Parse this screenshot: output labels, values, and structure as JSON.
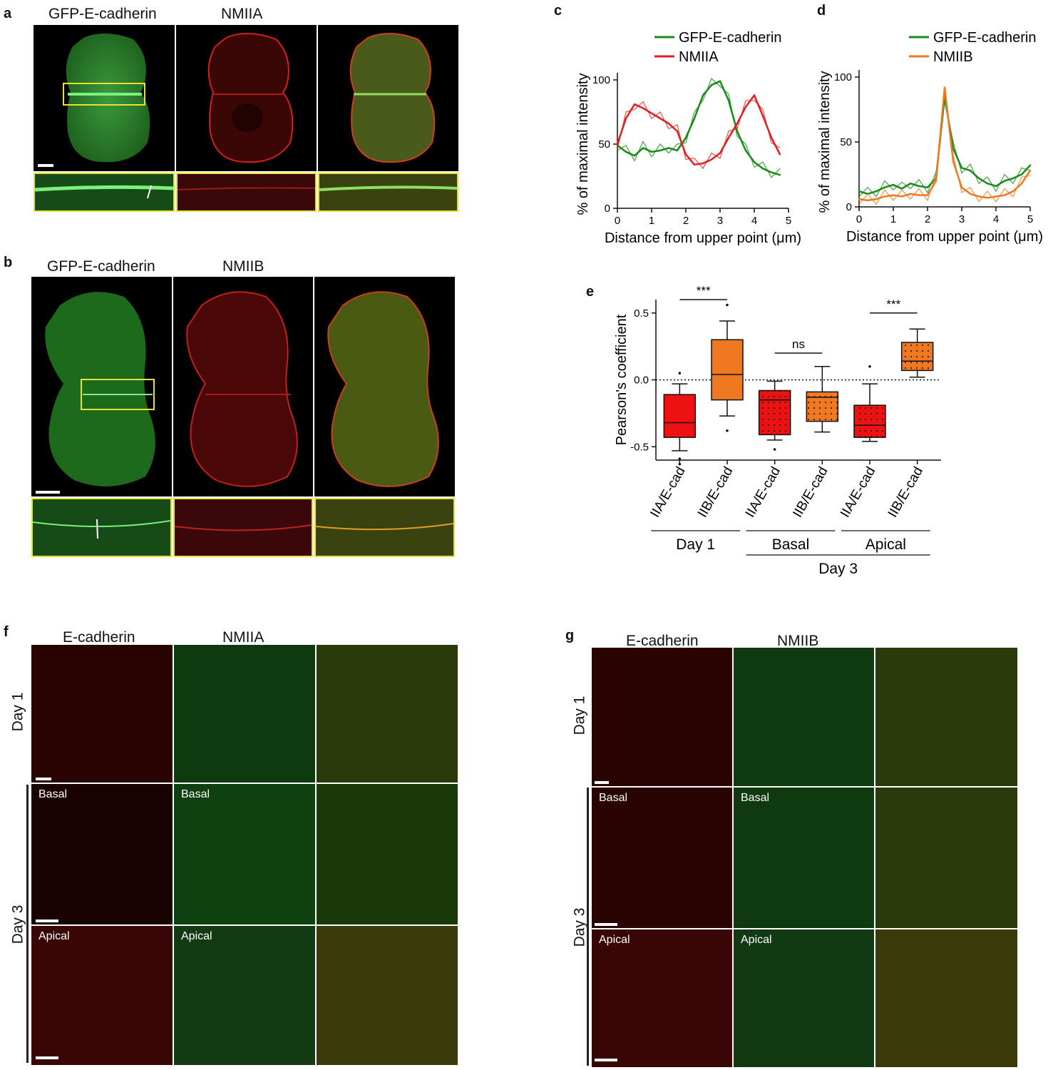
{
  "panels": {
    "a": {
      "letter": "a",
      "channels": [
        "GFP-E-cadherin",
        "NMIIA"
      ]
    },
    "b": {
      "letter": "b",
      "channels": [
        "GFP-E-cadherin",
        "NMIIB"
      ]
    },
    "c": {
      "letter": "c"
    },
    "d": {
      "letter": "d"
    },
    "e": {
      "letter": "e"
    },
    "f": {
      "letter": "f",
      "channels": [
        "E-cadherin",
        "NMIIA"
      ],
      "rows": {
        "day1": "Day 1",
        "day3": "Day 3"
      },
      "sublabels": {
        "basal": "Basal",
        "apical": "Apical"
      }
    },
    "g": {
      "letter": "g",
      "channels": [
        "E-cadherin",
        "NMIIB"
      ],
      "rows": {
        "day1": "Day 1",
        "day3": "Day 3"
      },
      "sublabels": {
        "basal": "Basal",
        "apical": "Apical"
      }
    }
  },
  "chart_data": [
    {
      "type": "line",
      "panel": "c",
      "xlabel": "Distance from upper point (μm)",
      "ylabel": "% of maximal intensity",
      "xlim": [
        0,
        5
      ],
      "ylim": [
        0,
        100
      ],
      "xticks": [
        "0",
        "1",
        "2",
        "3",
        "4",
        "5"
      ],
      "yticks": [
        "0",
        "50",
        "100"
      ],
      "legend_position": "top",
      "x": [
        0,
        0.25,
        0.5,
        0.75,
        1.0,
        1.25,
        1.5,
        1.75,
        2.0,
        2.25,
        2.5,
        2.75,
        3.0,
        3.25,
        3.5,
        3.75,
        4.0,
        4.25,
        4.5,
        4.75
      ],
      "series": [
        {
          "name": "GFP-E-cadherin",
          "color": "#1a8a1a",
          "values": [
            49,
            44,
            41,
            47,
            44,
            45,
            47,
            45,
            55,
            70,
            88,
            96,
            99,
            84,
            60,
            45,
            36,
            31,
            28,
            26
          ]
        },
        {
          "name": "NMIIA",
          "color": "#e02020",
          "values": [
            50,
            70,
            81,
            78,
            74,
            70,
            66,
            60,
            42,
            34,
            35,
            38,
            43,
            55,
            66,
            79,
            88,
            72,
            55,
            42
          ]
        }
      ]
    },
    {
      "type": "line",
      "panel": "d",
      "xlabel": "Distance from upper point (μm)",
      "ylabel": "% of maximal intensity",
      "xlim": [
        0,
        5
      ],
      "ylim": [
        0,
        100
      ],
      "xticks": [
        "0",
        "1",
        "2",
        "3",
        "4",
        "5"
      ],
      "yticks": [
        "0",
        "50",
        "100"
      ],
      "legend_position": "top",
      "x": [
        0,
        0.25,
        0.5,
        0.75,
        1.0,
        1.25,
        1.5,
        1.75,
        2.0,
        2.25,
        2.5,
        2.75,
        3.0,
        3.25,
        3.5,
        3.75,
        4.0,
        4.25,
        4.5,
        4.75,
        5.0
      ],
      "series": [
        {
          "name": "GFP-E-cadherin",
          "color": "#1a8a1a",
          "values": [
            12,
            10,
            12,
            15,
            17,
            14,
            18,
            16,
            15,
            22,
            85,
            45,
            30,
            28,
            22,
            18,
            16,
            20,
            22,
            25,
            32
          ]
        },
        {
          "name": "NMIIB",
          "color": "#f07820",
          "values": [
            6,
            5,
            6,
            8,
            9,
            8,
            10,
            9,
            9,
            20,
            92,
            35,
            15,
            10,
            8,
            7,
            8,
            9,
            12,
            18,
            28
          ]
        }
      ]
    },
    {
      "type": "box",
      "panel": "e",
      "ylabel": "Pearson's coefficient",
      "ylim": [
        -0.6,
        0.6
      ],
      "yticks": [
        "-0.5",
        "0.0",
        "0.5"
      ],
      "reference_line": 0,
      "categories": [
        "IIA/E-cad",
        "IIB/E-cad",
        "IIA/E-cad",
        "IIB/E-cad",
        "IIA/E-cad",
        "IIB/E-cad"
      ],
      "colors": [
        "#ee1111",
        "#f07820",
        "#ee1111",
        "#f07820",
        "#ee1111",
        "#f07820"
      ],
      "dotted_fill": [
        false,
        false,
        true,
        true,
        true,
        true
      ],
      "boxes": [
        {
          "min": -0.53,
          "q1": -0.43,
          "median": -0.32,
          "q3": -0.11,
          "max": -0.03,
          "outliers": [
            0.05,
            -0.59,
            -0.63
          ]
        },
        {
          "min": -0.27,
          "q1": -0.15,
          "median": 0.04,
          "q3": 0.3,
          "max": 0.44,
          "outliers": [
            0.56,
            -0.38
          ]
        },
        {
          "min": -0.45,
          "q1": -0.41,
          "median": -0.15,
          "q3": -0.08,
          "max": -0.01,
          "outliers": [
            -0.52
          ]
        },
        {
          "min": -0.39,
          "q1": -0.31,
          "median": -0.13,
          "q3": -0.09,
          "max": 0.1,
          "outliers": []
        },
        {
          "min": -0.46,
          "q1": -0.43,
          "median": -0.34,
          "q3": -0.19,
          "max": -0.03,
          "outliers": [
            0.1
          ]
        },
        {
          "min": 0.02,
          "q1": 0.07,
          "median": 0.14,
          "q3": 0.28,
          "max": 0.38,
          "outliers": []
        }
      ],
      "significance": [
        {
          "between": [
            0,
            1
          ],
          "label": "***"
        },
        {
          "between": [
            2,
            3
          ],
          "label": "ns"
        },
        {
          "between": [
            4,
            5
          ],
          "label": "***"
        }
      ],
      "groups": [
        {
          "label": "Day 1",
          "span": [
            0,
            1
          ]
        },
        {
          "label": "Basal",
          "span": [
            2,
            3
          ]
        },
        {
          "label": "Apical",
          "span": [
            4,
            5
          ]
        },
        {
          "label": "Day 3",
          "span": [
            2,
            5
          ]
        }
      ]
    }
  ]
}
